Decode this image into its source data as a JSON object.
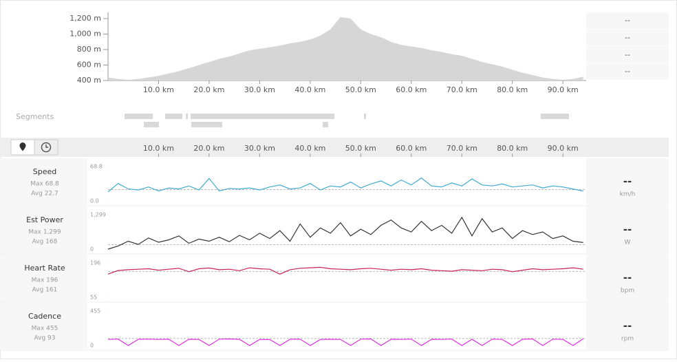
{
  "segments_label": "Segments",
  "side_values": [
    "--",
    "--",
    "--",
    "--"
  ],
  "chart_data": [
    {
      "type": "area",
      "color": "#d6d6d6",
      "xlim": [
        0,
        94.6
      ],
      "ylim": [
        400,
        1280
      ],
      "xticks": [
        {
          "value": 10,
          "label": "10.0 km"
        },
        {
          "value": 20,
          "label": "20.0 km"
        },
        {
          "value": 30,
          "label": "30.0 km"
        },
        {
          "value": 40,
          "label": "40.0 km"
        },
        {
          "value": 50,
          "label": "50.0 km"
        },
        {
          "value": 60,
          "label": "60.0 km"
        },
        {
          "value": 70,
          "label": "70.0 km"
        },
        {
          "value": 80,
          "label": "80.0 km"
        },
        {
          "value": 90,
          "label": "90.0 km"
        }
      ],
      "yticks": [
        {
          "value": 400,
          "label": "400 m"
        },
        {
          "value": 600,
          "label": "600 m"
        },
        {
          "value": 800,
          "label": "800 m"
        },
        {
          "value": 1000,
          "label": "1,000 m"
        },
        {
          "value": 1200,
          "label": "1,200 m"
        }
      ],
      "x": [
        0,
        2,
        4,
        6,
        8,
        10,
        12,
        14,
        16,
        18,
        20,
        22,
        24,
        26,
        28,
        30,
        32,
        34,
        36,
        38,
        40,
        42,
        44,
        46,
        48,
        50,
        52,
        54,
        56,
        58,
        60,
        62,
        64,
        66,
        68,
        70,
        72,
        74,
        76,
        78,
        80,
        82,
        84,
        86,
        88,
        90,
        92,
        94
      ],
      "values": [
        440,
        420,
        410,
        420,
        440,
        460,
        490,
        520,
        560,
        600,
        640,
        680,
        710,
        750,
        790,
        810,
        830,
        850,
        880,
        900,
        930,
        980,
        1060,
        1220,
        1200,
        1060,
        1000,
        960,
        900,
        860,
        840,
        820,
        790,
        770,
        740,
        720,
        680,
        640,
        610,
        580,
        540,
        500,
        470,
        440,
        420,
        410,
        420,
        450
      ]
    },
    {
      "type": "line",
      "title": "Speed",
      "stats": [
        "Max 68.8",
        "Avg 22.7"
      ],
      "avg": 22.7,
      "current": "--",
      "unit": "km/h",
      "color": "#3fa9d0",
      "xlim": [
        0,
        94.6
      ],
      "ylim": [
        0,
        68.8
      ],
      "yticks": [
        {
          "value": 0,
          "label": "0.0"
        },
        68.8
      ],
      "x": [
        0,
        2,
        4,
        6,
        8,
        10,
        12,
        14,
        16,
        18,
        20,
        22,
        24,
        26,
        28,
        30,
        32,
        34,
        36,
        38,
        40,
        42,
        44,
        46,
        48,
        50,
        52,
        54,
        56,
        58,
        60,
        62,
        64,
        66,
        68,
        70,
        72,
        74,
        76,
        78,
        80,
        82,
        84,
        86,
        88,
        90,
        92,
        94
      ],
      "values": [
        18,
        35,
        24,
        22,
        28,
        20,
        26,
        24,
        30,
        22,
        45,
        20,
        25,
        24,
        26,
        22,
        28,
        32,
        24,
        26,
        35,
        22,
        30,
        28,
        38,
        26,
        34,
        40,
        30,
        42,
        32,
        46,
        30,
        28,
        36,
        30,
        44,
        32,
        30,
        34,
        28,
        30,
        32,
        26,
        30,
        28,
        24,
        20
      ]
    },
    {
      "type": "line",
      "title": "Est Power",
      "stats": [
        "Max 1,299",
        "Avg 168"
      ],
      "avg": 168,
      "current": "--",
      "unit": "W",
      "color": "#333333",
      "xlim": [
        0,
        94.6
      ],
      "ylim": [
        0,
        1299
      ],
      "yticks": [
        0,
        {
          "value": 1299,
          "label": "1,299"
        }
      ],
      "x": [
        0,
        2,
        4,
        6,
        8,
        10,
        12,
        14,
        16,
        18,
        20,
        22,
        24,
        26,
        28,
        30,
        32,
        34,
        36,
        38,
        40,
        42,
        44,
        46,
        48,
        50,
        52,
        54,
        56,
        58,
        60,
        62,
        64,
        66,
        68,
        70,
        72,
        74,
        76,
        78,
        80,
        82,
        84,
        86,
        88,
        90,
        92,
        94
      ],
      "values": [
        0,
        120,
        300,
        180,
        420,
        260,
        350,
        500,
        220,
        380,
        300,
        450,
        280,
        520,
        350,
        600,
        400,
        700,
        300,
        950,
        450,
        800,
        600,
        1000,
        500,
        750,
        550,
        900,
        1100,
        800,
        650,
        1050,
        700,
        900,
        600,
        1200,
        500,
        1150,
        650,
        800,
        400,
        700,
        550,
        650,
        400,
        500,
        300,
        250
      ]
    },
    {
      "type": "line",
      "title": "Heart Rate",
      "stats": [
        "Max 196",
        "Avg 161"
      ],
      "avg": 161,
      "current": "--",
      "unit": "bpm",
      "color": "#c8215a",
      "xlim": [
        0,
        94.6
      ],
      "ylim": [
        55,
        196
      ],
      "yticks": [
        55,
        196
      ],
      "x": [
        0,
        2,
        4,
        6,
        8,
        10,
        12,
        14,
        16,
        18,
        20,
        22,
        24,
        26,
        28,
        30,
        32,
        34,
        36,
        38,
        40,
        42,
        44,
        46,
        48,
        50,
        52,
        54,
        56,
        58,
        60,
        62,
        64,
        66,
        68,
        70,
        72,
        74,
        76,
        78,
        80,
        82,
        84,
        86,
        88,
        90,
        92,
        94
      ],
      "values": [
        150,
        165,
        168,
        170,
        172,
        166,
        170,
        174,
        160,
        172,
        175,
        168,
        170,
        164,
        176,
        172,
        170,
        150,
        168,
        174,
        176,
        178,
        172,
        170,
        168,
        172,
        174,
        170,
        166,
        170,
        168,
        172,
        166,
        164,
        162,
        168,
        166,
        164,
        170,
        168,
        160,
        166,
        172,
        168,
        170,
        172,
        176,
        170
      ]
    },
    {
      "type": "line",
      "title": "Cadence",
      "stats": [
        "Max 455",
        "Avg 93"
      ],
      "avg": 93,
      "current": "--",
      "unit": "rpm",
      "color": "#e030e0",
      "xlim": [
        0,
        94.6
      ],
      "ylim": [
        0,
        455
      ],
      "yticks": [
        0,
        455
      ],
      "x": [
        0,
        2,
        4,
        6,
        8,
        10,
        12,
        14,
        16,
        18,
        20,
        22,
        24,
        26,
        28,
        30,
        32,
        34,
        36,
        38,
        40,
        42,
        44,
        46,
        48,
        50,
        52,
        54,
        56,
        58,
        60,
        62,
        64,
        66,
        68,
        70,
        72,
        74,
        76,
        78,
        80,
        82,
        84,
        86,
        88,
        90,
        92,
        94
      ],
      "values": [
        80,
        85,
        0,
        82,
        84,
        80,
        83,
        0,
        82,
        80,
        0,
        84,
        86,
        82,
        0,
        80,
        78,
        0,
        82,
        84,
        0,
        80,
        82,
        80,
        0,
        84,
        86,
        0,
        82,
        80,
        84,
        0,
        82,
        80,
        85,
        0,
        82,
        0,
        84,
        80,
        0,
        82,
        86,
        0,
        84,
        80,
        0,
        88
      ]
    }
  ]
}
